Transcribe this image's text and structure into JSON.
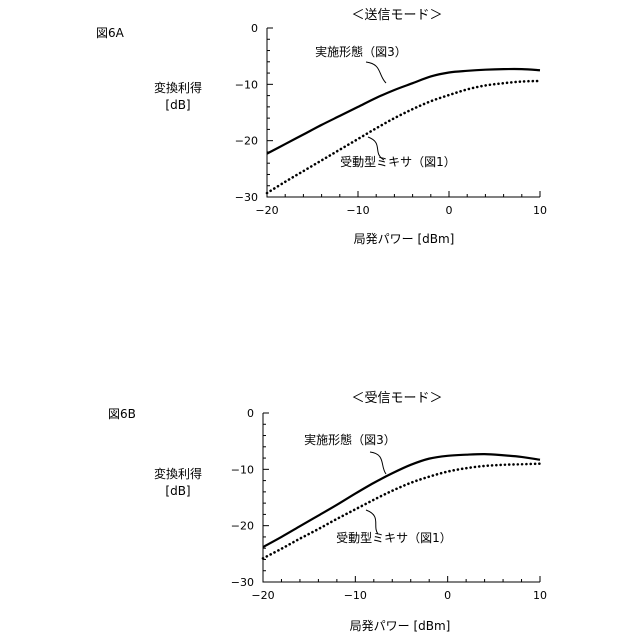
{
  "chart_data": [
    {
      "type": "line",
      "figure_label": "図6A",
      "title": "＜送信モード＞",
      "xlabel": "局発パワー [dBm]",
      "ylabel_line1": "変換利得",
      "ylabel_line2": "[dB]",
      "xlim": [
        -20,
        10
      ],
      "ylim": [
        -30,
        0
      ],
      "xticks": [
        -20,
        -10,
        0,
        10
      ],
      "yticks": [
        0,
        -10,
        -20,
        -30
      ],
      "xtick_labels": [
        "−20",
        "−10",
        "0",
        "10"
      ],
      "ytick_labels": [
        "0",
        "−10",
        "−20",
        "−30"
      ],
      "grid": false,
      "series": [
        {
          "name": "実施形態（図3）",
          "style": "solid",
          "x": [
            -20,
            -18,
            -16,
            -14,
            -12,
            -10,
            -8,
            -6,
            -4,
            -2,
            0,
            2,
            4,
            6,
            8,
            10
          ],
          "y": [
            -22.3,
            -20.6,
            -18.9,
            -17.2,
            -15.6,
            -14.0,
            -12.4,
            -11.0,
            -9.8,
            -8.6,
            -7.9,
            -7.6,
            -7.4,
            -7.3,
            -7.3,
            -7.5
          ]
        },
        {
          "name": "受動型ミキサ（図1）",
          "style": "dotted",
          "x": [
            -20,
            -18,
            -16,
            -14,
            -12,
            -10,
            -8,
            -6,
            -4,
            -2,
            0,
            2,
            4,
            6,
            8,
            10
          ],
          "y": [
            -29.3,
            -27.3,
            -25.4,
            -23.5,
            -21.6,
            -19.7,
            -17.8,
            -16.0,
            -14.4,
            -13.0,
            -11.9,
            -10.9,
            -10.2,
            -9.8,
            -9.5,
            -9.4
          ]
        }
      ]
    },
    {
      "type": "line",
      "figure_label": "図6B",
      "title": "＜受信モード＞",
      "xlabel": "局発パワー [dBm]",
      "ylabel_line1": "変換利得",
      "ylabel_line2": "[dB]",
      "xlim": [
        -20,
        10
      ],
      "ylim": [
        -30,
        0
      ],
      "xticks": [
        -20,
        -10,
        0,
        10
      ],
      "yticks": [
        0,
        -10,
        -20,
        -30
      ],
      "xtick_labels": [
        "−20",
        "−10",
        "0",
        "10"
      ],
      "ytick_labels": [
        "0",
        "−10",
        "−20",
        "−30"
      ],
      "grid": false,
      "series": [
        {
          "name": "実施形態（図3）",
          "style": "solid",
          "x": [
            -20,
            -18,
            -16,
            -14,
            -12,
            -10,
            -8,
            -6,
            -4,
            -2,
            0,
            2,
            4,
            6,
            8,
            10
          ],
          "y": [
            -23.8,
            -22.0,
            -20.1,
            -18.2,
            -16.3,
            -14.3,
            -12.4,
            -10.7,
            -9.2,
            -8.1,
            -7.6,
            -7.4,
            -7.3,
            -7.5,
            -7.8,
            -8.3
          ]
        },
        {
          "name": "受動型ミキサ（図1）",
          "style": "dotted",
          "x": [
            -20,
            -18,
            -16,
            -14,
            -12,
            -10,
            -8,
            -6,
            -4,
            -2,
            0,
            2,
            4,
            6,
            8,
            10
          ],
          "y": [
            -25.8,
            -24.1,
            -22.3,
            -20.6,
            -18.8,
            -17.1,
            -15.4,
            -13.8,
            -12.4,
            -11.3,
            -10.4,
            -9.8,
            -9.4,
            -9.2,
            -9.1,
            -9.0
          ]
        }
      ]
    }
  ]
}
